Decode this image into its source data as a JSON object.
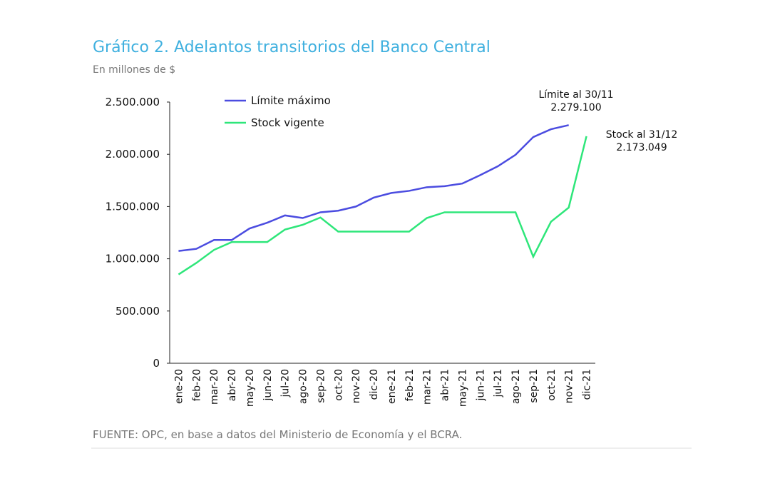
{
  "chart_data": {
    "type": "line",
    "title": "Gráfico 2. Adelantos transitorios del Banco Central",
    "subtitle": "En millones de $",
    "source": "FUENTE: OPC, en base a datos del Ministerio de Economía y el BCRA.",
    "categories": [
      "ene-20",
      "feb-20",
      "mar-20",
      "abr-20",
      "may-20",
      "jun-20",
      "jul-20",
      "ago-20",
      "sep-20",
      "oct-20",
      "nov-20",
      "dic-20",
      "ene-21",
      "feb-21",
      "mar-21",
      "abr-21",
      "may-21",
      "jun-21",
      "jul-21",
      "ago-21",
      "sep-21",
      "oct-21",
      "nov-21",
      "dic-21"
    ],
    "series": [
      {
        "name": "Límite máximo",
        "color": "#4b4ce0",
        "values": [
          1075000,
          1095000,
          1180000,
          1180000,
          1290000,
          1345000,
          1415000,
          1390000,
          1445000,
          1460000,
          1500000,
          1585000,
          1630000,
          1650000,
          1685000,
          1695000,
          1720000,
          1800000,
          1885000,
          1995000,
          2165000,
          2240000,
          2279100,
          null
        ]
      },
      {
        "name": "Stock vigente",
        "color": "#2ee67a",
        "values": [
          850000,
          960000,
          1085000,
          1160000,
          1160000,
          1160000,
          1280000,
          1325000,
          1395000,
          1260000,
          1260000,
          1260000,
          1260000,
          1260000,
          1390000,
          1445000,
          1445000,
          1445000,
          1445000,
          1445000,
          1020000,
          1355000,
          1490000,
          2173049
        ]
      }
    ],
    "annotations": [
      {
        "text": "Límite al 30/11",
        "value": "2.279.100"
      },
      {
        "text": "Stock al 31/12",
        "value": "2.173.049"
      }
    ],
    "ylim": [
      0,
      2500000
    ],
    "yticks": [
      0,
      {
        "value": 500000,
        "label": "500.000"
      },
      {
        "value": 1000000,
        "label": "1.000.000"
      },
      {
        "value": 1500000,
        "label": "1.500.000"
      },
      {
        "value": 2000000,
        "label": "2.000.000"
      },
      {
        "value": 2500000,
        "label": "2.500.000"
      }
    ],
    "legend": "upper-left"
  }
}
